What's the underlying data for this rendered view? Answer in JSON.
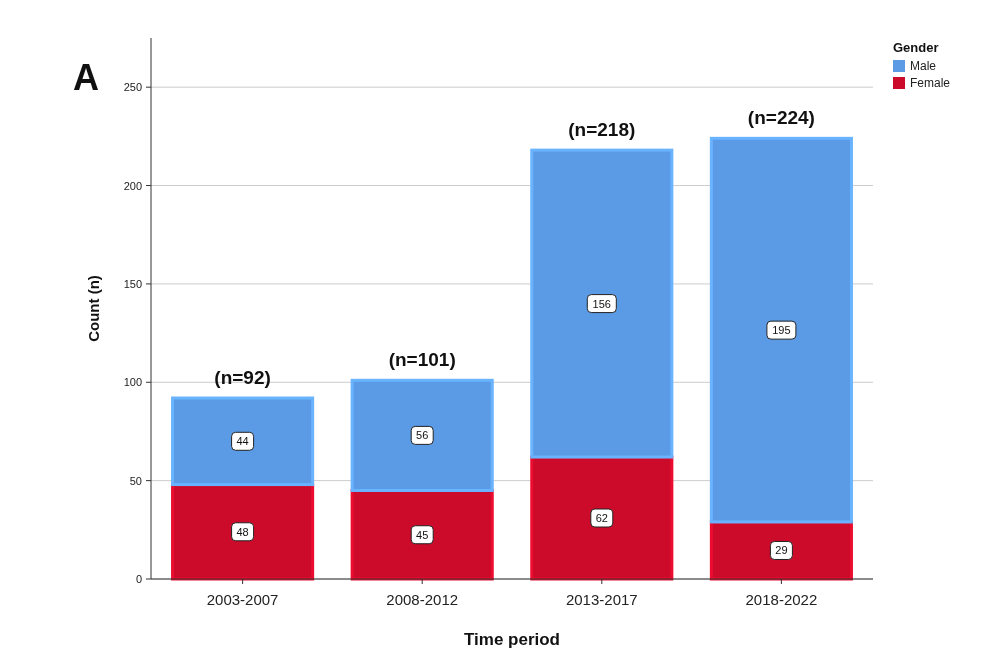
{
  "chart_data": {
    "type": "bar",
    "title": "A",
    "xlabel": "Time period",
    "ylabel": "Count (n)",
    "legend_title": "Gender",
    "categories": [
      "2003-2007",
      "2008-2012",
      "2013-2017",
      "2018-2022"
    ],
    "series": [
      {
        "name": "Female",
        "color": "#cc0a2a",
        "values": [
          48,
          45,
          62,
          29
        ]
      },
      {
        "name": "Male",
        "color": "#5b9be6",
        "values": [
          44,
          56,
          156,
          195
        ]
      }
    ],
    "stacked": true,
    "data_labels": true,
    "totals": [
      "(n=92)",
      "(n=101)",
      "(n=218)",
      "(n=224)"
    ],
    "ylim": [
      0,
      275
    ],
    "yticks": [
      0,
      50,
      100,
      150,
      200,
      250
    ],
    "grid": "y",
    "legend": "top right"
  }
}
